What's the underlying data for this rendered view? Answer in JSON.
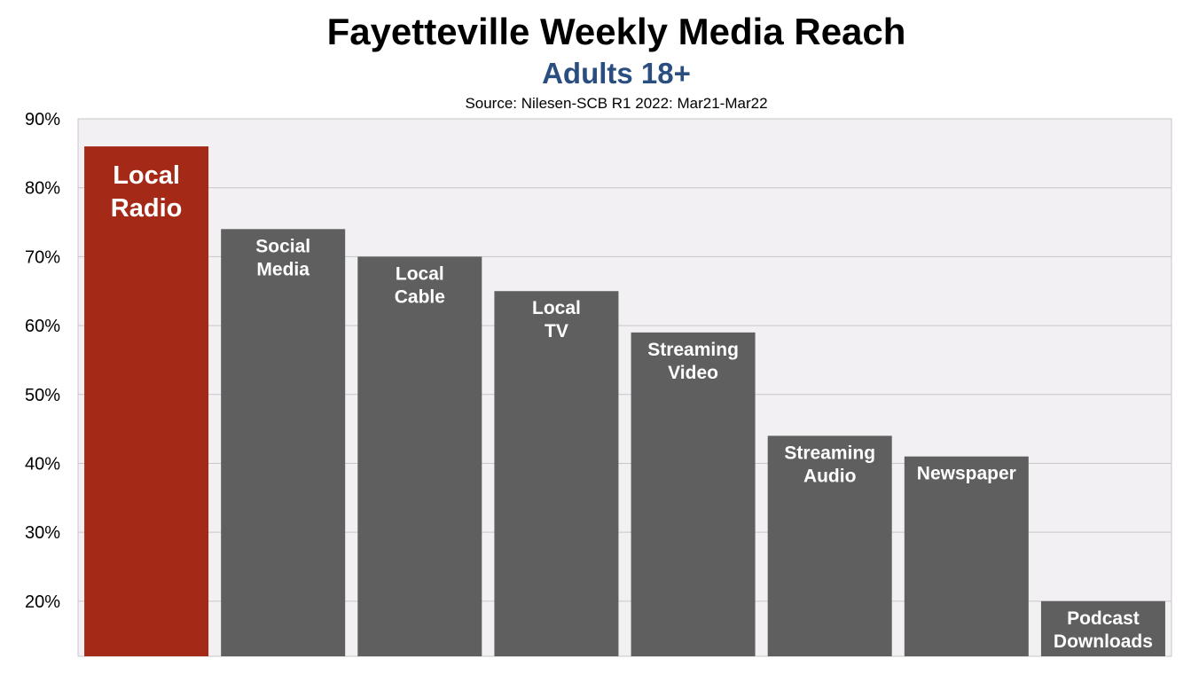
{
  "chart_data": {
    "type": "bar",
    "title": "Fayetteville Weekly Media Reach",
    "subtitle": "Adults 18+",
    "source": "Source: Nilesen-SCB R1 2022: Mar21-Mar22",
    "categories": [
      [
        "Local",
        "Radio"
      ],
      [
        "Social",
        "Media"
      ],
      [
        "Local",
        "Cable"
      ],
      [
        "Local",
        "TV"
      ],
      [
        "Streaming",
        "Video"
      ],
      [
        "Streaming",
        "Audio"
      ],
      [
        "Newspaper"
      ],
      [
        "Podcast",
        "Downloads"
      ]
    ],
    "values": [
      86,
      74,
      70,
      65,
      59,
      44,
      41,
      20
    ],
    "yticks": [
      "20%",
      "30%",
      "40%",
      "50%",
      "60%",
      "70%",
      "80%",
      "90%"
    ],
    "ylim": [
      12,
      90
    ],
    "grid": true,
    "legend": "none",
    "colors": {
      "highlight": "#a42a17",
      "bar": "#5f5f5f",
      "plot_bg": "#f2f0f3",
      "grid": "#c8c6c9",
      "subtitle": "#2a4e7f"
    }
  }
}
